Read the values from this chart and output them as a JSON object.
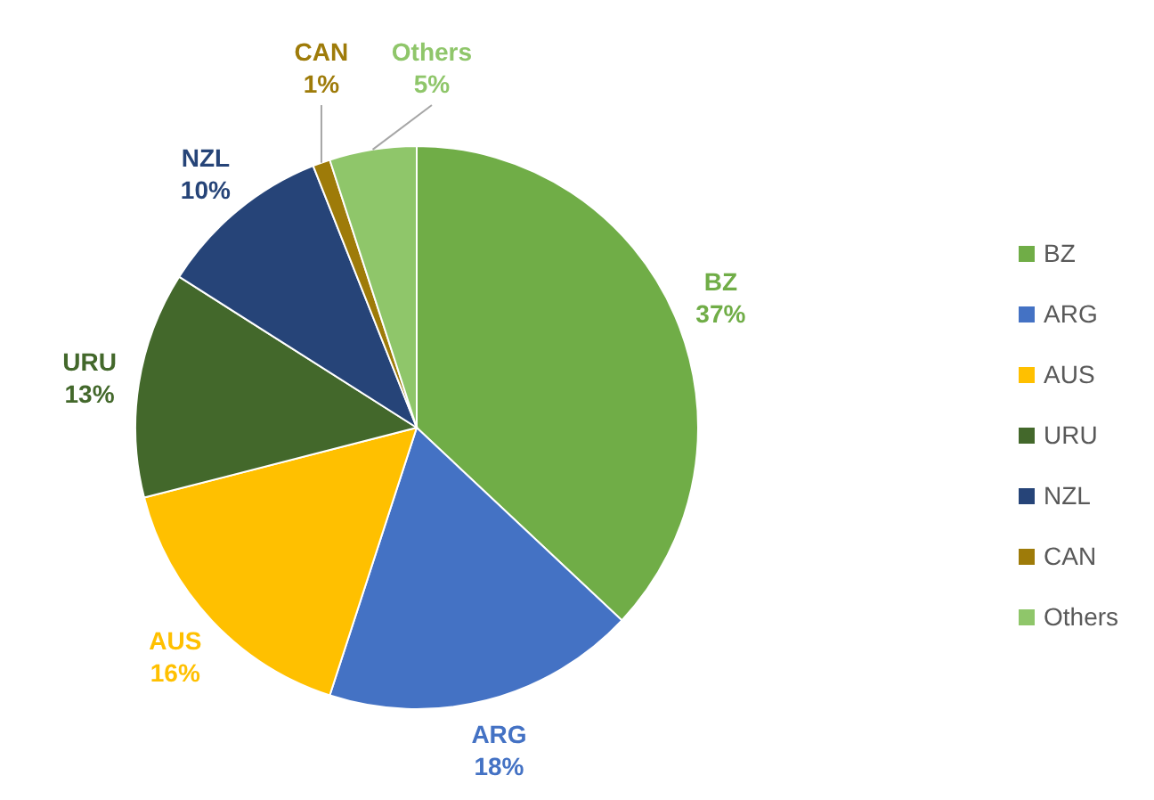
{
  "chart_data": {
    "type": "pie",
    "categories": [
      "BZ",
      "ARG",
      "AUS",
      "URU",
      "NZL",
      "CAN",
      "Others"
    ],
    "values": [
      37,
      18,
      16,
      13,
      10,
      1,
      5
    ],
    "colors": [
      "#70ad47",
      "#4472c4",
      "#ffc000",
      "#43682b",
      "#264478",
      "#9e7b09",
      "#8fc66a"
    ],
    "value_labels": [
      "37%",
      "18%",
      "16%",
      "13%",
      "10%",
      "1%",
      "5%"
    ],
    "legend": "right"
  }
}
